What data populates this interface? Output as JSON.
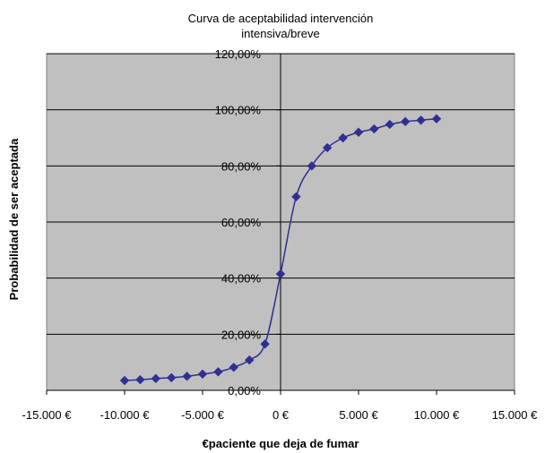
{
  "chart_data": {
    "type": "scatter",
    "title_lines": [
      "Curva de aceptabilidad intervención",
      "intensiva/breve"
    ],
    "xlabel": "€paciente que deja de fumar",
    "ylabel": "Probabilidad de ser aceptada",
    "xlim": [
      -15000,
      15000
    ],
    "ylim": [
      0,
      1.2
    ],
    "x_ticks": [
      -15000,
      -10000,
      -5000,
      0,
      5000,
      10000,
      15000
    ],
    "x_tick_labels": [
      "-15.000 €",
      "-10.000 €",
      "-5.000 €",
      "0 €",
      "5.000 €",
      "10.000 €",
      "15.000 €"
    ],
    "y_ticks": [
      0,
      0.2,
      0.4,
      0.6,
      0.8,
      1.0,
      1.2
    ],
    "y_tick_labels": [
      "0,00%",
      "20,00%",
      "40,00%",
      "60,00%",
      "80,00%",
      "100,00%",
      "120,00%"
    ],
    "grid": true,
    "legend": "none",
    "plot_background": "#c0c0c0",
    "series": [
      {
        "color": "#2e3192",
        "marker": "diamond",
        "smooth_line": true,
        "x": [
          -10000,
          -9000,
          -8000,
          -7000,
          -6000,
          -5000,
          -4000,
          -3000,
          -2000,
          -1000,
          0,
          1000,
          2000,
          3000,
          4000,
          5000,
          6000,
          7000,
          8000,
          9000,
          10000
        ],
        "y": [
          0.035,
          0.038,
          0.042,
          0.045,
          0.05,
          0.058,
          0.066,
          0.082,
          0.108,
          0.165,
          0.415,
          0.69,
          0.8,
          0.865,
          0.9,
          0.92,
          0.932,
          0.948,
          0.958,
          0.963,
          0.968
        ]
      }
    ]
  }
}
